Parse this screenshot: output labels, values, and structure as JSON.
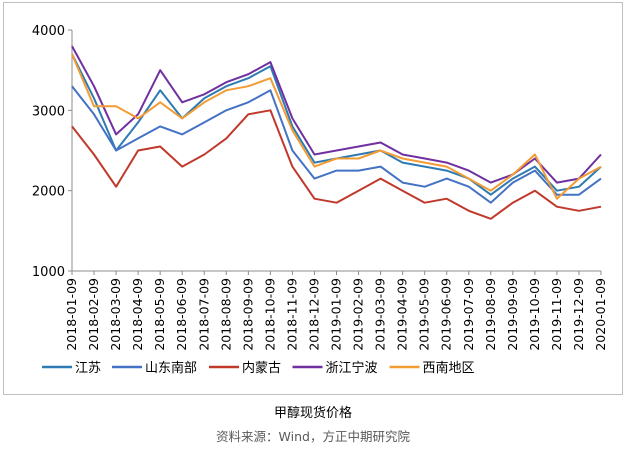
{
  "chart_data": {
    "type": "line",
    "title": "甲醇现货价格",
    "source": "资料来源：Wind，方正中期研究院",
    "ylim": [
      1000,
      4000
    ],
    "yticks": [
      1000,
      2000,
      3000,
      4000
    ],
    "x_tick_labels": [
      "2018-01-09",
      "2018-02-09",
      "2018-03-09",
      "2018-04-09",
      "2018-05-09",
      "2018-06-09",
      "2018-07-09",
      "2018-08-09",
      "2018-09-09",
      "2018-10-09",
      "2018-11-09",
      "2018-12-09",
      "2019-01-09",
      "2019-02-09",
      "2019-03-09",
      "2019-04-09",
      "2019-05-09",
      "2019-06-09",
      "2019-07-09",
      "2019-08-09",
      "2019-09-09",
      "2019-10-09",
      "2019-11-09",
      "2019-12-09",
      "2020-01-09"
    ],
    "grid": false,
    "legend_position": "bottom",
    "x": [
      "2018-01-09",
      "2018-02-09",
      "2018-03-09",
      "2018-04-09",
      "2018-05-09",
      "2018-06-09",
      "2018-07-09",
      "2018-08-09",
      "2018-09-09",
      "2018-10-09",
      "2018-11-09",
      "2018-12-09",
      "2019-01-09",
      "2019-02-09",
      "2019-03-09",
      "2019-04-09",
      "2019-05-09",
      "2019-06-09",
      "2019-07-09",
      "2019-08-09",
      "2019-09-09",
      "2019-10-09",
      "2019-11-09",
      "2019-12-09",
      "2020-01-09"
    ],
    "series": [
      {
        "name": "江苏",
        "color": "#2e7bb4",
        "values": [
          3700,
          3150,
          2500,
          2850,
          3250,
          2900,
          3150,
          3300,
          3400,
          3550,
          2800,
          2350,
          2400,
          2450,
          2500,
          2350,
          2300,
          2250,
          2150,
          1950,
          2150,
          2300,
          2000,
          2050,
          2300
        ]
      },
      {
        "name": "山东南部",
        "color": "#4472c4",
        "values": [
          3300,
          2950,
          2500,
          2650,
          2800,
          2700,
          2850,
          3000,
          3100,
          3250,
          2500,
          2150,
          2250,
          2250,
          2300,
          2100,
          2050,
          2150,
          2050,
          1850,
          2100,
          2250,
          1950,
          1950,
          2150
        ]
      },
      {
        "name": "内蒙古",
        "color": "#c0392b",
        "values": [
          2800,
          2450,
          2050,
          2500,
          2550,
          2300,
          2450,
          2650,
          2950,
          3000,
          2300,
          1900,
          1850,
          2000,
          2150,
          2000,
          1850,
          1900,
          1750,
          1650,
          1850,
          2000,
          1800,
          1750,
          1800
        ]
      },
      {
        "name": "浙江宁波",
        "color": "#7030a0",
        "values": [
          3800,
          3300,
          2700,
          2950,
          3500,
          3100,
          3200,
          3350,
          3450,
          3600,
          2900,
          2450,
          2500,
          2550,
          2600,
          2450,
          2400,
          2350,
          2250,
          2100,
          2200,
          2400,
          2100,
          2150,
          2450
        ]
      },
      {
        "name": "西南地区",
        "color": "#f39c34",
        "values": [
          3700,
          3050,
          3050,
          2900,
          3100,
          2900,
          3100,
          3250,
          3300,
          3400,
          2750,
          2300,
          2400,
          2400,
          2500,
          2400,
          2350,
          2300,
          2150,
          2000,
          2200,
          2450,
          1900,
          2150,
          2300
        ]
      }
    ]
  }
}
